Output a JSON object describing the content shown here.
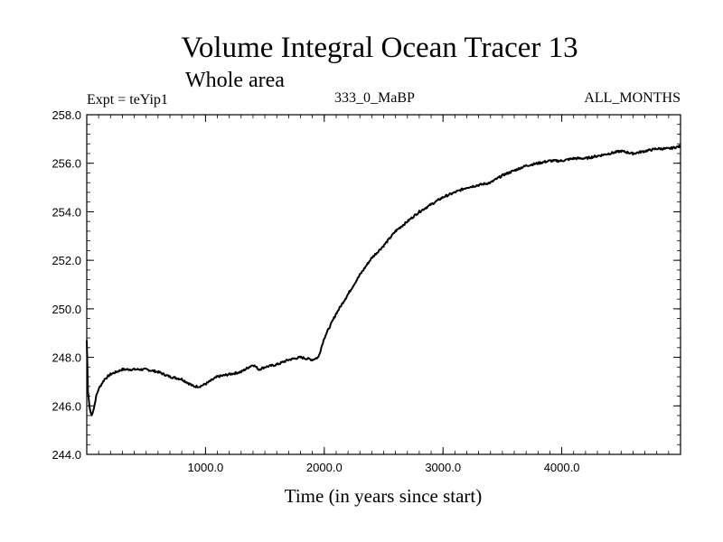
{
  "chart_data": {
    "type": "line",
    "title": "Volume Integral Ocean Tracer 13",
    "subtitle": "Whole area",
    "experiment_label": "Expt = teYip1",
    "period_label": "333_0_MaBP",
    "months_label": "ALL_MONTHS",
    "xlabel": "Time (in years since start)",
    "ylabel": "",
    "xlim": [
      0,
      5000
    ],
    "ylim": [
      244.0,
      258.0
    ],
    "x_ticks": [
      {
        "value": 1000,
        "label": "1000.0"
      },
      {
        "value": 2000,
        "label": "2000.0"
      },
      {
        "value": 3000,
        "label": "3000.0"
      },
      {
        "value": 4000,
        "label": "4000.0"
      }
    ],
    "y_ticks": [
      {
        "value": 244,
        "label": "244.0"
      },
      {
        "value": 246,
        "label": "246.0"
      },
      {
        "value": 248,
        "label": "248.0"
      },
      {
        "value": 250,
        "label": "250.0"
      },
      {
        "value": 252,
        "label": "252.0"
      },
      {
        "value": 254,
        "label": "254.0"
      },
      {
        "value": 256,
        "label": "256.0"
      },
      {
        "value": 258,
        "label": "258.0"
      }
    ],
    "series": [
      {
        "name": "Tracer 13",
        "color": "#000000",
        "x": [
          0,
          10,
          25,
          40,
          60,
          80,
          100,
          150,
          200,
          300,
          400,
          500,
          600,
          700,
          800,
          900,
          950,
          1000,
          1100,
          1200,
          1300,
          1400,
          1450,
          1500,
          1600,
          1700,
          1800,
          1900,
          1950,
          2000,
          2100,
          2200,
          2300,
          2400,
          2500,
          2600,
          2700,
          2800,
          2900,
          3000,
          3100,
          3200,
          3300,
          3400,
          3500,
          3600,
          3700,
          3800,
          3900,
          4000,
          4100,
          4200,
          4300,
          4400,
          4500,
          4600,
          4700,
          4800,
          4900,
          5000
        ],
        "values": [
          248.7,
          246.6,
          245.9,
          245.6,
          245.9,
          246.4,
          246.7,
          247.1,
          247.3,
          247.5,
          247.5,
          247.5,
          247.4,
          247.2,
          247.1,
          246.8,
          246.8,
          246.9,
          247.2,
          247.3,
          247.4,
          247.7,
          247.5,
          247.6,
          247.7,
          247.9,
          248.0,
          247.9,
          248.0,
          248.8,
          249.8,
          250.6,
          251.4,
          252.1,
          252.6,
          253.2,
          253.6,
          254.0,
          254.3,
          254.6,
          254.8,
          255.0,
          255.1,
          255.2,
          255.5,
          255.7,
          255.9,
          256.0,
          256.1,
          256.1,
          256.2,
          256.2,
          256.3,
          256.4,
          256.5,
          256.4,
          256.5,
          256.6,
          256.6,
          256.7
        ]
      }
    ]
  }
}
